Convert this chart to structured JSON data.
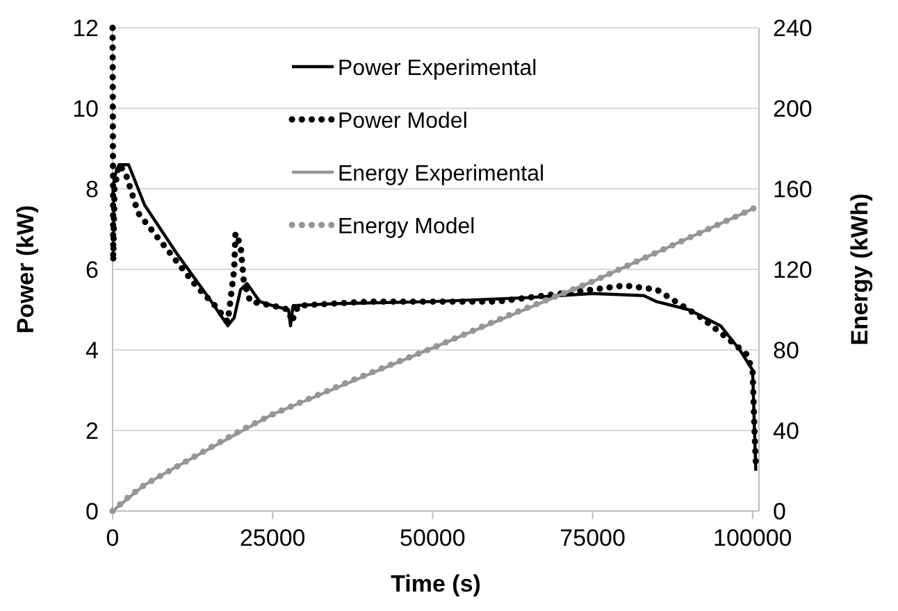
{
  "chart_data": {
    "type": "line",
    "xlabel": "Time (s)",
    "ylabel": "Power (kW)",
    "y2label": "Energy (kWh)",
    "xlim": [
      0,
      101000
    ],
    "xticks": [
      0,
      25000,
      50000,
      75000,
      100000
    ],
    "ylim": [
      0,
      12
    ],
    "yticks": [
      0,
      2,
      4,
      6,
      8,
      10,
      12
    ],
    "y2lim": [
      0,
      240
    ],
    "y2ticks": [
      0,
      40,
      80,
      120,
      160,
      200,
      240
    ],
    "grid": "y",
    "legend": "top",
    "marker": "none",
    "series": [
      {
        "name": "Power Experimental",
        "color": "#000000",
        "line_style": "solid",
        "x": [
          0,
          300,
          1000,
          2500,
          5000,
          10000,
          15000,
          18000,
          19000,
          20000,
          21000,
          23000,
          25000,
          27500,
          27800,
          28200,
          35000,
          50000,
          65000,
          75000,
          83000,
          85000,
          90000,
          95000,
          98000,
          100000,
          100300,
          100500
        ],
        "values": [
          7.8,
          8.3,
          8.6,
          8.6,
          7.6,
          6.4,
          5.3,
          4.6,
          4.8,
          5.5,
          5.65,
          5.2,
          5.1,
          5.0,
          4.6,
          5.1,
          5.15,
          5.2,
          5.3,
          5.4,
          5.35,
          5.2,
          5.0,
          4.6,
          4.0,
          3.5,
          2.0,
          1.0
        ]
      },
      {
        "name": "Power Model",
        "color": "#000000",
        "line_style": "dotted",
        "x": [
          0,
          100,
          300,
          1000,
          2000,
          4000,
          7000,
          10000,
          13000,
          16000,
          18000,
          19000,
          19200,
          20000,
          20500,
          21500,
          25000,
          27500,
          28000,
          29000,
          40000,
          60000,
          70000,
          80000,
          85000,
          88000,
          92000,
          96000,
          99000,
          100000,
          100300,
          100500
        ],
        "values": [
          12,
          6.2,
          8,
          8.6,
          8.4,
          7.4,
          6.8,
          6.2,
          5.6,
          5.1,
          4.7,
          6.0,
          6.9,
          6.6,
          5.7,
          5.2,
          5.1,
          5.0,
          4.7,
          5.1,
          5.2,
          5.2,
          5.4,
          5.6,
          5.5,
          5.2,
          4.8,
          4.3,
          3.9,
          3.5,
          2.0,
          1.2
        ]
      },
      {
        "name": "Energy Experimental",
        "color": "#969696",
        "line_style": "solid",
        "axis": "y2",
        "x": [
          0,
          5000,
          10000,
          25000,
          50000,
          75000,
          100000,
          100500
        ],
        "values": [
          0,
          13,
          22,
          48,
          81,
          114,
          150,
          151
        ]
      },
      {
        "name": "Energy Model",
        "color": "#969696",
        "line_style": "dotted",
        "axis": "y2",
        "x": [
          0,
          2500,
          5000,
          10000,
          15000,
          20000,
          25000,
          37500,
          50000,
          62500,
          75000,
          87500,
          100000,
          100500
        ],
        "values": [
          0,
          7,
          13,
          22,
          31,
          40,
          48,
          65,
          81,
          98,
          114,
          132,
          150,
          151
        ]
      }
    ]
  }
}
